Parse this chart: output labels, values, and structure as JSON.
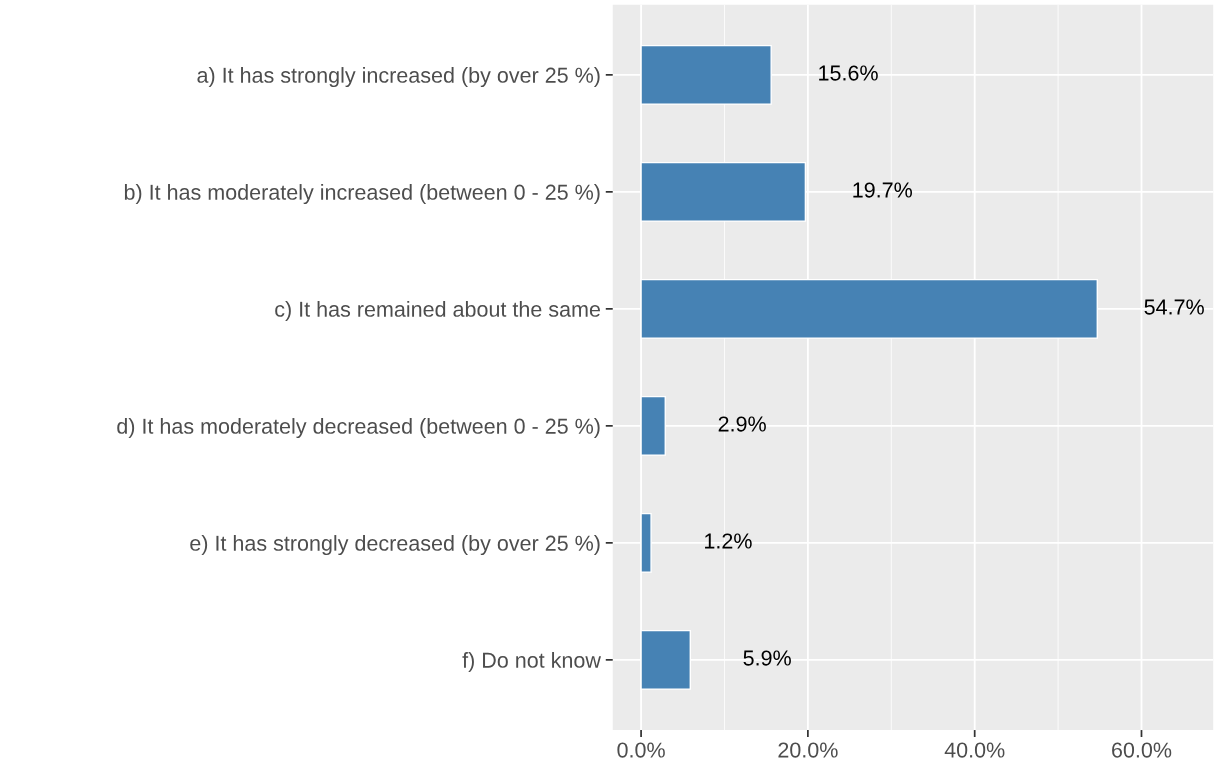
{
  "chart_data": {
    "type": "bar",
    "orientation": "horizontal",
    "categories": [
      "a) It has strongly increased (by over 25 %)",
      "b) It has moderately increased (between 0 - 25 %)",
      "c) It has remained about the same",
      "d) It has moderately decreased (between 0 - 25 %)",
      "e) It has strongly decreased (by over 25 %)",
      "f) Do not know"
    ],
    "values": [
      15.6,
      19.7,
      54.7,
      2.9,
      1.2,
      5.9
    ],
    "value_labels": [
      "15.6%",
      "19.7%",
      "54.7%",
      "2.9%",
      "1.2%",
      "5.9%"
    ],
    "color": "#4682b4",
    "xlim": [
      -3.4,
      68.6
    ],
    "xticks": [
      {
        "value": 0,
        "label": "0.0%"
      },
      {
        "value": 20,
        "label": "20.0%"
      },
      {
        "value": 40,
        "label": "40.0%"
      },
      {
        "value": 60,
        "label": "60.0%"
      }
    ],
    "grid": true
  }
}
